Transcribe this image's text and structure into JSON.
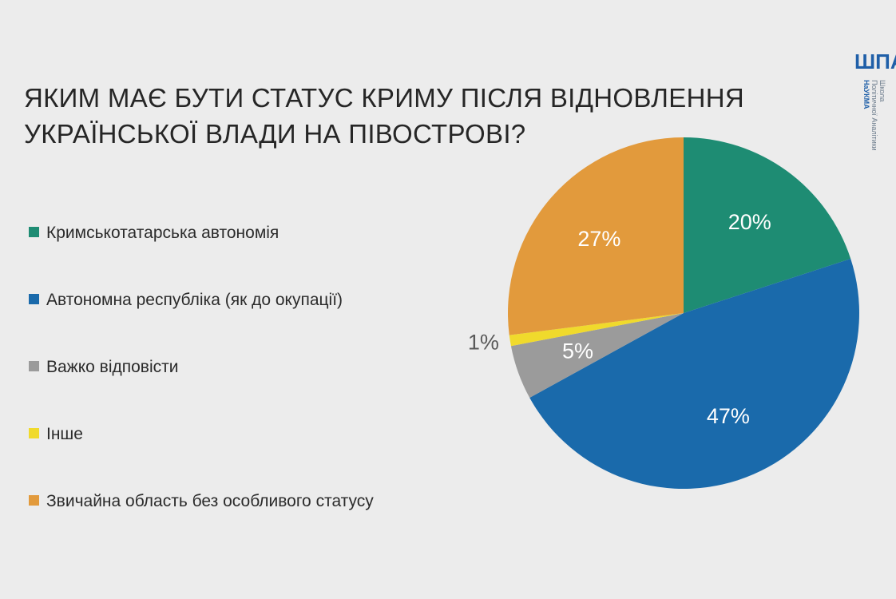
{
  "slide": {
    "title_lines": [
      "Яким має бути статус Криму після відновлення",
      "української влади на півострові?"
    ]
  },
  "logo": {
    "mark": "ШПА",
    "line1": "Школа",
    "line2": "Політичної Аналітики",
    "line3": "НаУКМА"
  },
  "chart_data": {
    "type": "pie",
    "title": "Яким має бути статус Криму після відновлення української влади на півострові?",
    "start_angle": "12 o'clock",
    "direction": "clockwise",
    "legend_position": "left",
    "slices": [
      {
        "label": "Кримськотатарська автономія",
        "value": 20,
        "display": "20%",
        "color": "#1e8c73"
      },
      {
        "label": "Автономна республіка (як до окупації)",
        "value": 47,
        "display": "47%",
        "color": "#1a6aab"
      },
      {
        "label": "Важко відповісти",
        "value": 5,
        "display": "5%",
        "color": "#9b9b9b"
      },
      {
        "label": "Інше",
        "value": 1,
        "display": "1%",
        "color": "#f0da2c"
      },
      {
        "label": "Звичайна область без особливого статусу",
        "value": 27,
        "display": "27%",
        "color": "#e29a3c"
      }
    ]
  }
}
